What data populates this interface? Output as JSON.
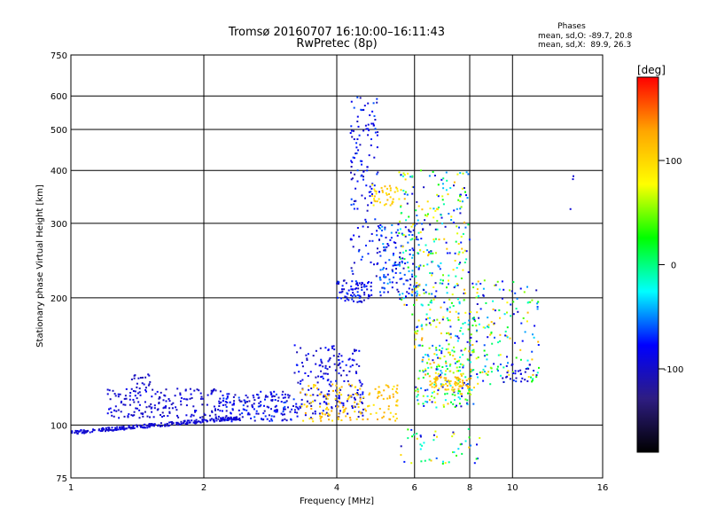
{
  "chart_data": {
    "type": "scatter",
    "title": "Tromsø 20160707 16:10:00–16:11:43",
    "subtitle": "RwPretec (8p)",
    "xlabel": "Frequency [MHz]",
    "ylabel": "Stationary phase Virtual Height [km]",
    "x_scale": "log",
    "y_scale": "log",
    "xlim": [
      1,
      16
    ],
    "ylim": [
      75,
      750
    ],
    "x_ticks": [
      1,
      2,
      4,
      6,
      8,
      10,
      16
    ],
    "y_ticks": [
      75,
      100,
      200,
      300,
      400,
      500,
      600,
      750
    ],
    "grid": true,
    "stats": {
      "heading": "Phases",
      "line1": "mean, sd,O: -89.7, 20.8",
      "line2": "mean, sd,X:  89.9, 26.3"
    },
    "colorbar": {
      "label": "[deg]",
      "range": [
        -180,
        180
      ],
      "ticks": [
        100,
        0,
        -100
      ],
      "colors": [
        "#000000",
        "#2e1d82",
        "#0000ff",
        "#00ffff",
        "#00ff00",
        "#ffff00",
        "#ffa500",
        "#ff0000"
      ]
    },
    "clusters": [
      {
        "x": [
          1.0,
          2.4
        ],
        "y": [
          96,
          104
        ],
        "phase": [
          -105,
          -85
        ],
        "n": 260,
        "note": "O-trace base"
      },
      {
        "x": [
          1.2,
          2.2
        ],
        "y": [
          104,
          122
        ],
        "phase": [
          -110,
          -80
        ],
        "n": 180
      },
      {
        "x": [
          1.35,
          1.55
        ],
        "y": [
          120,
          132
        ],
        "phase": [
          -110,
          -90
        ],
        "n": 20
      },
      {
        "x": [
          2.2,
          3.2
        ],
        "y": [
          102,
          120
        ],
        "phase": [
          -110,
          -60
        ],
        "n": 160
      },
      {
        "x": [
          3.2,
          4.6
        ],
        "y": [
          104,
          155
        ],
        "phase": [
          -110,
          -70
        ],
        "n": 200
      },
      {
        "x": [
          3.3,
          5.5
        ],
        "y": [
          102,
          125
        ],
        "phase": [
          90,
          130
        ],
        "n": 150,
        "note": "X-trace"
      },
      {
        "x": [
          4.0,
          4.8
        ],
        "y": [
          195,
          220
        ],
        "phase": [
          -110,
          -60
        ],
        "n": 80
      },
      {
        "x": [
          4.3,
          5.0
        ],
        "y": [
          225,
          600
        ],
        "phase": [
          -110,
          -60
        ],
        "n": 140
      },
      {
        "x": [
          4.8,
          5.6
        ],
        "y": [
          330,
          370
        ],
        "phase": [
          80,
          120
        ],
        "n": 40
      },
      {
        "x": [
          5.0,
          6.2
        ],
        "y": [
          200,
          300
        ],
        "phase": [
          -110,
          -40
        ],
        "n": 130
      },
      {
        "x": [
          5.5,
          8.0
        ],
        "y": [
          180,
          400
        ],
        "phase": [
          -110,
          120
        ],
        "n": 280
      },
      {
        "x": [
          6.0,
          8.2
        ],
        "y": [
          110,
          180
        ],
        "phase": [
          -110,
          130
        ],
        "n": 260
      },
      {
        "x": [
          6.5,
          8.0
        ],
        "y": [
          120,
          130
        ],
        "phase": [
          95,
          130
        ],
        "n": 60
      },
      {
        "x": [
          8.0,
          11.5
        ],
        "y": [
          125,
          220
        ],
        "phase": [
          -110,
          120
        ],
        "n": 170
      },
      {
        "x": [
          5.5,
          8.5
        ],
        "y": [
          80,
          98
        ],
        "phase": [
          -110,
          120
        ],
        "n": 50
      },
      {
        "x": [
          9.5,
          11.0
        ],
        "y": [
          125,
          140
        ],
        "phase": [
          -110,
          -80
        ],
        "n": 25
      },
      {
        "x": [
          13.5,
          13.8
        ],
        "y": [
          310,
          410
        ],
        "phase": [
          -110,
          -90
        ],
        "n": 3
      }
    ]
  }
}
